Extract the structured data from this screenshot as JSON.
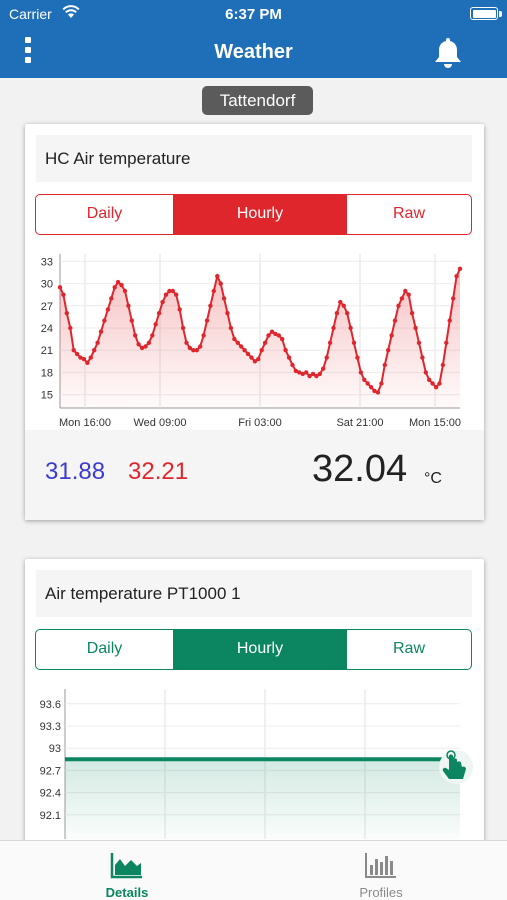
{
  "status_bar": {
    "carrier": "Carrier",
    "time": "6:37 PM"
  },
  "header": {
    "title": "Weather"
  },
  "location": "Tattendorf",
  "cards": [
    {
      "title": "HC Air temperature",
      "tabs": [
        "Daily",
        "Hourly",
        "Raw"
      ],
      "active_tab": "Hourly",
      "accent": "#e0262d",
      "stats": {
        "min": "31.88",
        "max": "32.21",
        "current": "32.04",
        "unit": "°C"
      }
    },
    {
      "title": "Air temperature PT1000 1",
      "tabs": [
        "Daily",
        "Hourly",
        "Raw"
      ],
      "active_tab": "Hourly",
      "accent": "#0b8661"
    }
  ],
  "tabbar": {
    "details": "Details",
    "profiles": "Profiles",
    "active": "Details"
  },
  "chart_data": [
    {
      "type": "line",
      "yticks": [
        "33",
        "30",
        "27",
        "24",
        "21",
        "18",
        "15"
      ],
      "ylim": [
        14,
        34
      ],
      "xticks": [
        "Mon 16:00",
        "Wed 09:00",
        "Fri 03:00",
        "Sat 21:00",
        "Mon 15:00"
      ],
      "color": "#e0262d",
      "values": [
        29.5,
        28.5,
        26,
        24,
        21,
        20.5,
        20,
        19.8,
        19.3,
        20,
        21,
        22,
        23.5,
        25,
        26.5,
        28,
        29.5,
        30.2,
        29.8,
        29,
        27,
        25,
        23,
        21.8,
        21.3,
        21.5,
        22,
        23,
        24.5,
        26,
        27.5,
        28.5,
        29,
        29,
        28.5,
        26.5,
        24,
        22,
        21.3,
        21,
        21,
        21.5,
        23,
        25,
        27,
        29,
        31,
        30,
        28,
        26,
        24,
        22.5,
        22,
        21.5,
        21,
        20.5,
        20,
        19.5,
        19.8,
        21,
        22,
        23,
        23.5,
        23.2,
        23,
        22.5,
        21,
        20,
        19,
        18.2,
        18,
        17.8,
        18,
        17.5,
        17.8,
        17.5,
        17.8,
        18.5,
        20,
        22,
        24,
        26,
        27.5,
        27,
        26,
        24,
        22,
        20,
        18,
        17,
        16.5,
        16,
        15.5,
        15.3,
        16.5,
        19,
        21,
        23,
        25,
        27,
        28,
        29,
        28.5,
        26,
        24,
        22,
        20,
        18,
        17,
        16.5,
        16,
        16.5,
        19,
        22,
        25,
        28,
        31,
        32
      ]
    },
    {
      "type": "line",
      "yticks": [
        "93.6",
        "93.3",
        "93",
        "92.7",
        "92.4",
        "92.1"
      ],
      "ylim": [
        91.8,
        93.8
      ],
      "color": "#0b8661",
      "values": [
        92.85,
        92.85
      ]
    }
  ]
}
